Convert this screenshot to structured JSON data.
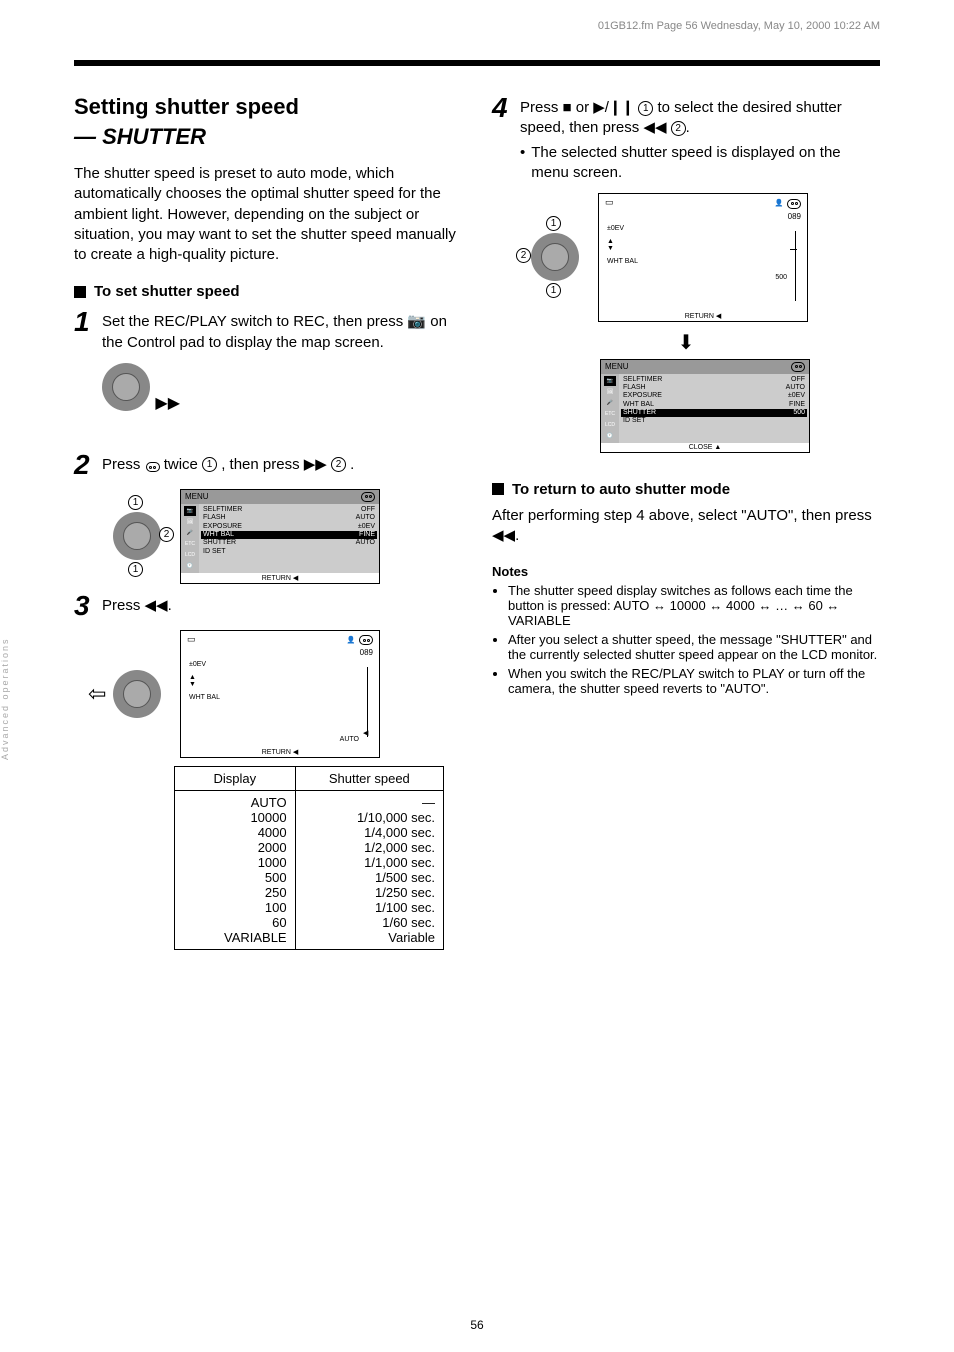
{
  "topPageRef": "01GB12.fm Page 56 Wednesday, May 10, 2000 10:22 AM",
  "title": "Setting shutter speed",
  "subtitle": "— SHUTTER",
  "intro": "The shutter speed is preset to auto mode, which automatically chooses the optimal shutter speed for the ambient light. However, depending on the subject or situation, you may want to set the shutter speed manually to create a high-quality picture.",
  "setHead": "To set shutter speed",
  "step1": {
    "pre": "Set the REC/PLAY switch to REC, then press ",
    "post": " on the Control pad to display the map screen."
  },
  "step2": {
    "pre": "Press ",
    "mid1": " twice ",
    "mid2": ", then press ",
    "post": "."
  },
  "menuScreen1": {
    "title": "MENU",
    "tabs": [
      "📷",
      "🖼",
      "🎤",
      "ETC",
      "LCD",
      "🕐"
    ],
    "rows": [
      {
        "l": "SELFTIMER",
        "r": "OFF"
      },
      {
        "l": "FLASH",
        "r": "AUTO"
      },
      {
        "l": "EXPOSURE",
        "r": "±0EV"
      },
      {
        "l": "WHT BAL",
        "r": "FINE",
        "hl": true
      },
      {
        "l": "SHUTTER",
        "r": "AUTO"
      },
      {
        "l": "ID SET",
        "r": ""
      }
    ],
    "ftr": "RETURN ◀"
  },
  "step3": "Press ◀◀.",
  "mapScreen1": {
    "topLeftBattery": true,
    "counter": "089",
    "body": {
      "exposure": "±0EV",
      "wb": "WHT BAL",
      "autoLabel": "AUTO",
      "upDown": true,
      "marker": true
    },
    "ftr": "RETURN ◀"
  },
  "speedTable": {
    "headers": [
      "Display",
      "Shutter speed"
    ],
    "rows": [
      [
        "AUTO",
        "—"
      ],
      [
        "10000",
        "1/10,000 sec."
      ],
      [
        "4000",
        "1/4,000 sec."
      ],
      [
        "2000",
        "1/2,000 sec."
      ],
      [
        "1000",
        "1/1,000 sec."
      ],
      [
        "500",
        "1/500 sec."
      ],
      [
        "250",
        "1/250 sec."
      ],
      [
        "100",
        "1/100 sec."
      ],
      [
        "60",
        "1/60 sec."
      ],
      [
        "VARIABLE",
        "Variable"
      ]
    ]
  },
  "step4": {
    "line1pre": "Press ",
    "line1mid": " or ",
    "line1post": " to select the desired shutter speed, then press ",
    "line1end": ".",
    "bullet": "The selected shutter speed is displayed on the menu screen."
  },
  "mapScreen2": {
    "counter": "089",
    "exposure": "±0EV",
    "wb": "WHT BAL",
    "shutVal": "500",
    "ftr": "RETURN ◀"
  },
  "menuScreen2": {
    "title": "MENU",
    "tabs": [
      "📷",
      "🖼",
      "🎤",
      "ETC",
      "LCD",
      "🕐"
    ],
    "rows": [
      {
        "l": "SELFTIMER",
        "r": "OFF"
      },
      {
        "l": "FLASH",
        "r": "AUTO"
      },
      {
        "l": "EXPOSURE",
        "r": "±0EV"
      },
      {
        "l": "WHT BAL",
        "r": "FINE"
      },
      {
        "l": "SHUTTER",
        "r": "500",
        "hl": true
      },
      {
        "l": "ID SET",
        "r": ""
      }
    ],
    "ftr": "CLOSE ▲"
  },
  "returnHead": "To return to auto shutter mode",
  "returnBody": "After performing step 4 above, select \"AUTO\", then press ◀◀.",
  "notesHead": "Notes",
  "notes": [
    "The shutter speed display switches as follows each time the button is pressed: AUTO ↔ 10000 ↔ 4000 ↔ … ↔ 60 ↔ VARIABLE",
    "After you select a shutter speed, the message \"SHUTTER\" and the currently selected shutter speed appear on the LCD monitor.",
    "When you switch the REC/PLAY switch to PLAY or turn off the camera, the shutter speed reverts to \"AUTO\"."
  ],
  "sidebarLabel": "Advanced operations",
  "pageNum": "56"
}
